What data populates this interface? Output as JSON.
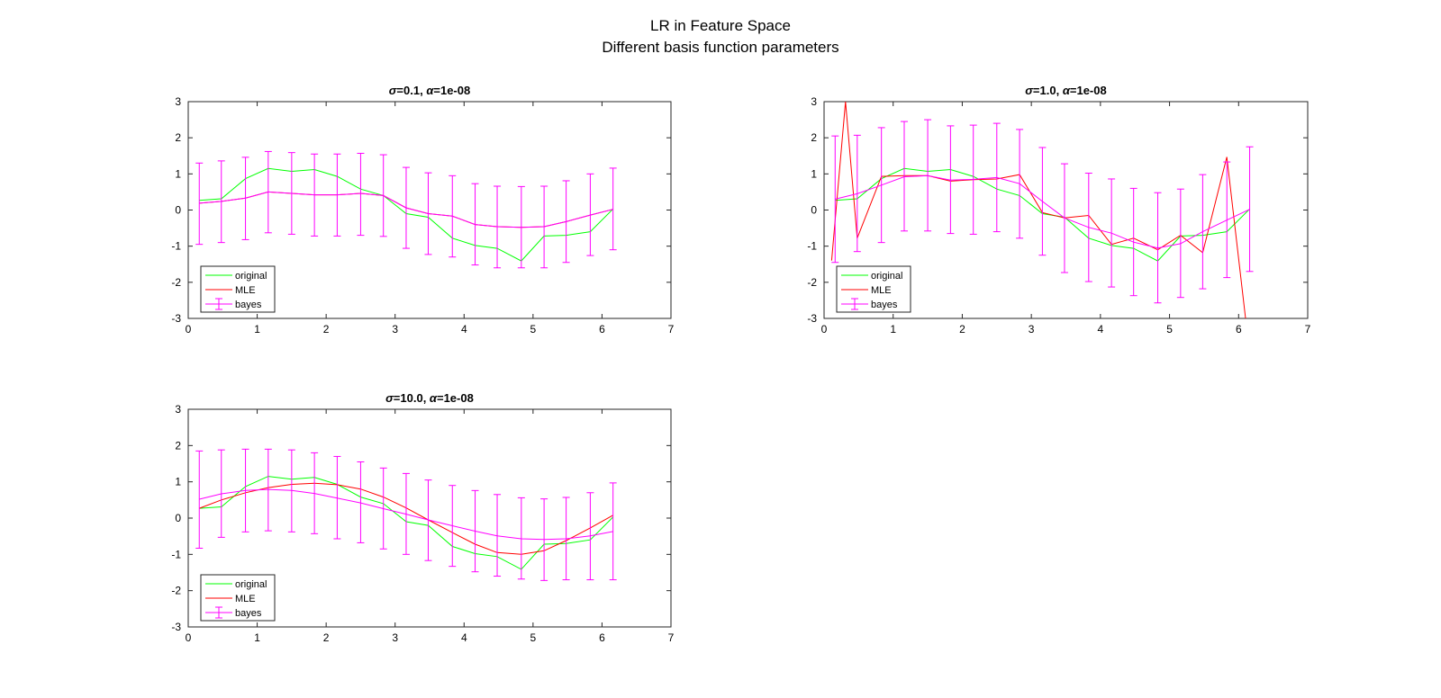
{
  "figure": {
    "title_line1": "LR in Feature Space",
    "title_line2": "Different basis function parameters"
  },
  "colors": {
    "original": "#00ff00",
    "mle": "#ff0000",
    "bayes": "#ff00ff"
  },
  "chart_data": [
    {
      "type": "line",
      "title": {
        "sigma": "=0.1, ",
        "alpha": "=1e-08"
      },
      "xlim": [
        0,
        7
      ],
      "ylim": [
        -3,
        3
      ],
      "xticks": [
        0,
        1,
        2,
        3,
        4,
        5,
        6,
        7
      ],
      "yticks": [
        -3,
        -2,
        -1,
        0,
        1,
        2,
        3
      ],
      "grid": false,
      "legend": {
        "placement": "bottom-left",
        "entries": [
          "original",
          "MLE",
          "bayes"
        ]
      },
      "x": [
        0.16,
        0.48,
        0.83,
        1.16,
        1.5,
        1.83,
        2.16,
        2.5,
        2.83,
        3.16,
        3.48,
        3.83,
        4.16,
        4.48,
        4.83,
        5.16,
        5.48,
        5.83,
        6.16
      ],
      "series": [
        {
          "name": "original",
          "y": [
            0.27,
            0.31,
            0.87,
            1.15,
            1.07,
            1.12,
            0.93,
            0.58,
            0.4,
            -0.1,
            -0.2,
            -0.78,
            -0.98,
            -1.06,
            -1.41,
            -0.72,
            -0.7,
            -0.6,
            0.03
          ]
        },
        {
          "name": "MLE",
          "y": [
            0.19,
            0.24,
            0.33,
            0.5,
            0.46,
            0.42,
            0.42,
            0.46,
            0.4,
            0.06,
            -0.1,
            -0.17,
            -0.4,
            -0.46,
            -0.48,
            -0.46,
            -0.32,
            -0.14,
            0.02
          ]
        },
        {
          "name": "bayes",
          "y": [
            0.19,
            0.24,
            0.33,
            0.5,
            0.46,
            0.42,
            0.42,
            0.46,
            0.4,
            0.06,
            -0.1,
            -0.17,
            -0.4,
            -0.46,
            -0.48,
            -0.46,
            -0.32,
            -0.14,
            0.02
          ],
          "err_low": [
            -0.95,
            -0.9,
            -0.82,
            -0.63,
            -0.67,
            -0.72,
            -0.72,
            -0.7,
            -0.73,
            -1.06,
            -1.23,
            -1.3,
            -1.52,
            -1.6,
            -1.6,
            -1.6,
            -1.45,
            -1.26,
            -1.1
          ],
          "err_high": [
            1.3,
            1.36,
            1.46,
            1.62,
            1.59,
            1.55,
            1.55,
            1.57,
            1.53,
            1.18,
            1.03,
            0.95,
            0.73,
            0.66,
            0.65,
            0.66,
            0.81,
            1.0,
            1.16
          ]
        }
      ]
    },
    {
      "type": "line",
      "title": {
        "sigma": "=1.0, ",
        "alpha": "=1e-08"
      },
      "xlim": [
        0,
        7
      ],
      "ylim": [
        -3,
        3
      ],
      "xticks": [
        0,
        1,
        2,
        3,
        4,
        5,
        6,
        7
      ],
      "yticks": [
        -3,
        -2,
        -1,
        0,
        1,
        2,
        3
      ],
      "grid": false,
      "legend": {
        "placement": "bottom-left",
        "entries": [
          "original",
          "MLE",
          "bayes"
        ]
      },
      "x": [
        0.16,
        0.48,
        0.83,
        1.16,
        1.5,
        1.83,
        2.16,
        2.5,
        2.83,
        3.16,
        3.48,
        3.83,
        4.16,
        4.48,
        4.83,
        5.16,
        5.48,
        5.83,
        6.16
      ],
      "series": [
        {
          "name": "original",
          "y": [
            0.27,
            0.31,
            0.87,
            1.15,
            1.07,
            1.12,
            0.93,
            0.58,
            0.4,
            -0.1,
            -0.2,
            -0.78,
            -0.98,
            -1.06,
            -1.41,
            -0.72,
            -0.7,
            -0.6,
            0.03
          ]
        },
        {
          "name": "MLE",
          "x": [
            0.11,
            0.31,
            0.48,
            0.83,
            1.16,
            1.5,
            1.83,
            2.16,
            2.5,
            2.83,
            3.16,
            3.48,
            3.83,
            4.16,
            4.48,
            4.83,
            5.16,
            5.48,
            5.83,
            6.1
          ],
          "y": [
            -1.4,
            3.0,
            -0.78,
            0.93,
            0.95,
            0.95,
            0.8,
            0.84,
            0.86,
            0.98,
            -0.07,
            -0.22,
            -0.15,
            -0.95,
            -0.78,
            -1.1,
            -0.7,
            -1.18,
            1.47,
            -3.0
          ]
        },
        {
          "name": "bayes",
          "y": [
            0.3,
            0.45,
            0.69,
            0.92,
            0.95,
            0.83,
            0.85,
            0.9,
            0.73,
            0.24,
            -0.22,
            -0.48,
            -0.64,
            -0.89,
            -1.05,
            -0.93,
            -0.6,
            -0.28,
            0.02
          ],
          "err_low": [
            -1.45,
            -1.15,
            -0.9,
            -0.58,
            -0.58,
            -0.65,
            -0.67,
            -0.6,
            -0.78,
            -1.25,
            -1.73,
            -1.98,
            -2.13,
            -2.37,
            -2.57,
            -2.42,
            -2.18,
            -1.87,
            -1.7
          ],
          "err_high": [
            2.05,
            2.07,
            2.28,
            2.45,
            2.5,
            2.33,
            2.35,
            2.4,
            2.23,
            1.73,
            1.28,
            1.02,
            0.86,
            0.6,
            0.48,
            0.58,
            0.98,
            1.33,
            1.75
          ]
        }
      ]
    },
    {
      "type": "line",
      "title": {
        "sigma": "=10.0, ",
        "alpha": "=1e-08"
      },
      "xlim": [
        0,
        7
      ],
      "ylim": [
        -3,
        3
      ],
      "xticks": [
        0,
        1,
        2,
        3,
        4,
        5,
        6,
        7
      ],
      "yticks": [
        -3,
        -2,
        -1,
        0,
        1,
        2,
        3
      ],
      "grid": false,
      "legend": {
        "placement": "bottom-left",
        "entries": [
          "original",
          "MLE",
          "bayes"
        ]
      },
      "x": [
        0.16,
        0.48,
        0.83,
        1.16,
        1.5,
        1.83,
        2.16,
        2.5,
        2.83,
        3.16,
        3.48,
        3.83,
        4.16,
        4.48,
        4.83,
        5.16,
        5.48,
        5.83,
        6.16
      ],
      "series": [
        {
          "name": "original",
          "y": [
            0.27,
            0.31,
            0.87,
            1.15,
            1.07,
            1.12,
            0.93,
            0.58,
            0.4,
            -0.1,
            -0.2,
            -0.78,
            -0.98,
            -1.06,
            -1.41,
            -0.72,
            -0.7,
            -0.6,
            0.03
          ]
        },
        {
          "name": "MLE",
          "y": [
            0.27,
            0.5,
            0.7,
            0.84,
            0.93,
            0.96,
            0.92,
            0.8,
            0.58,
            0.28,
            -0.05,
            -0.4,
            -0.72,
            -0.95,
            -1.0,
            -0.9,
            -0.62,
            -0.27,
            0.08
          ]
        },
        {
          "name": "bayes",
          "y": [
            0.52,
            0.67,
            0.76,
            0.79,
            0.76,
            0.68,
            0.55,
            0.42,
            0.26,
            0.11,
            -0.05,
            -0.21,
            -0.36,
            -0.49,
            -0.57,
            -0.59,
            -0.57,
            -0.49,
            -0.37
          ],
          "err_low": [
            -0.83,
            -0.53,
            -0.38,
            -0.35,
            -0.38,
            -0.43,
            -0.57,
            -0.68,
            -0.85,
            -1.0,
            -1.17,
            -1.33,
            -1.48,
            -1.6,
            -1.68,
            -1.72,
            -1.7,
            -1.7,
            -1.7
          ],
          "err_high": [
            1.85,
            1.88,
            1.9,
            1.9,
            1.88,
            1.8,
            1.7,
            1.55,
            1.38,
            1.23,
            1.05,
            0.9,
            0.76,
            0.65,
            0.56,
            0.53,
            0.57,
            0.7,
            0.97
          ]
        }
      ]
    }
  ]
}
